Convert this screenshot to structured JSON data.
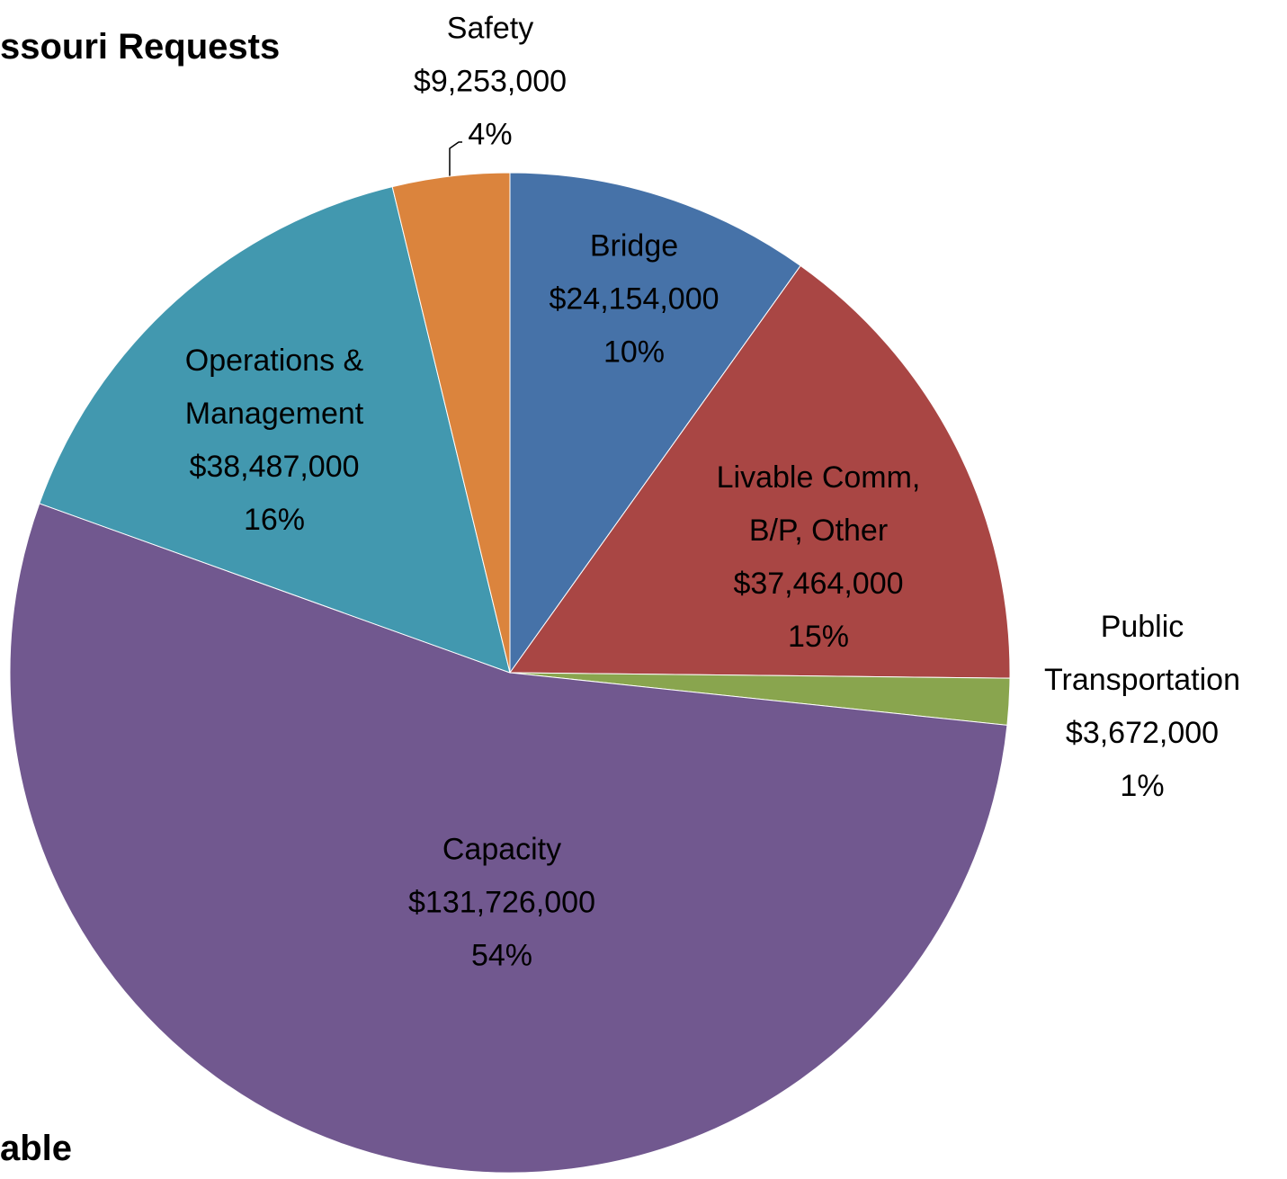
{
  "chart_data": {
    "type": "pie",
    "title": "ssouri Requests",
    "footer": "able",
    "categories": [
      "Bridge",
      "Livable Comm,\nB/P, Other",
      "Public\nTransportation",
      "Capacity",
      "Operations &\nManagement",
      "Safety"
    ],
    "values": [
      24154000,
      37464000,
      3672000,
      131726000,
      38487000,
      9253000
    ],
    "value_labels": [
      "$24,154,000",
      "$37,464,000",
      "$3,672,000",
      "$131,726,000",
      "$38,487,000",
      "$9,253,000"
    ],
    "percent_labels": [
      "10%",
      "15%",
      "1%",
      "54%",
      "16%",
      "4%"
    ],
    "colors": [
      "#4672a8",
      "#a94644",
      "#89a54e",
      "#71588f",
      "#4298af",
      "#db843d"
    ]
  }
}
